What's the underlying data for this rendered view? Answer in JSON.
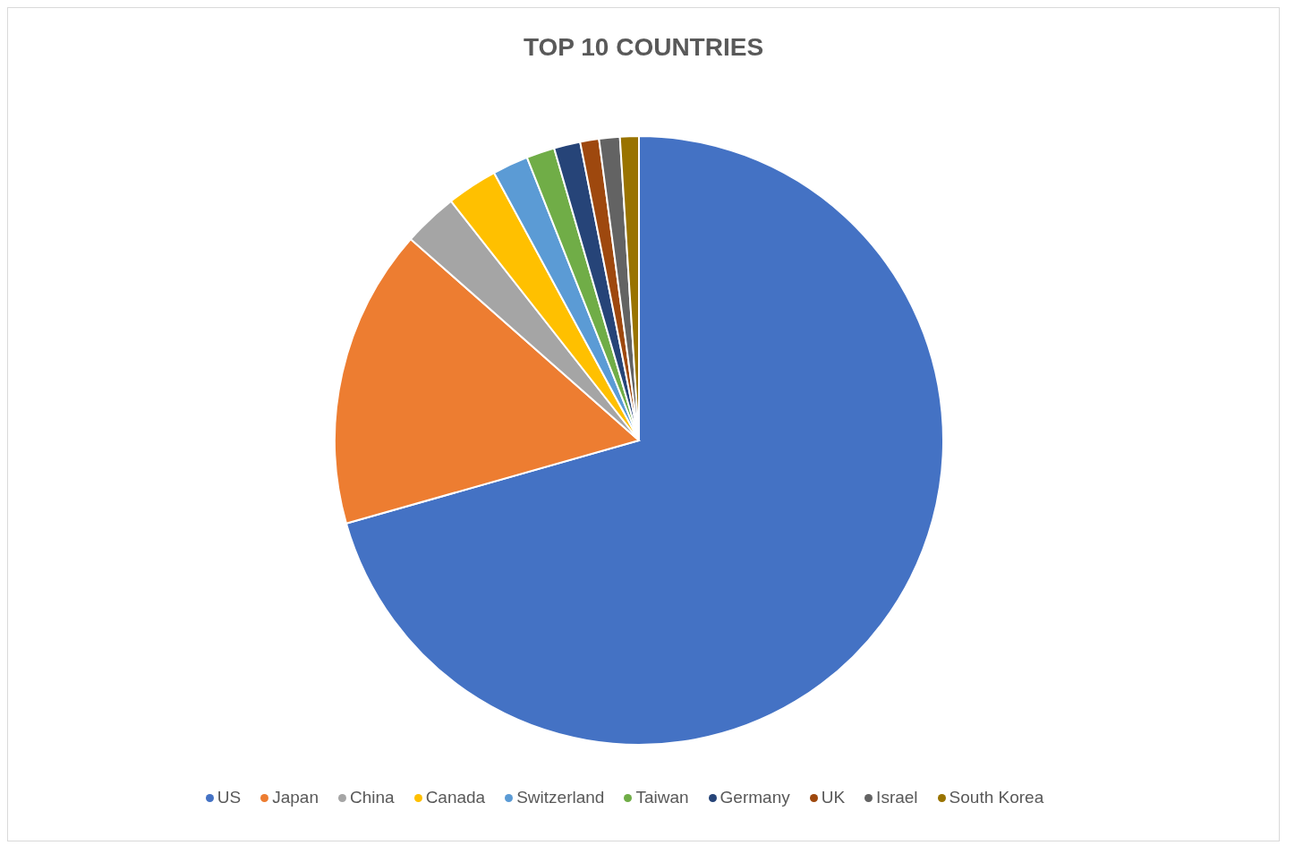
{
  "chart_data": {
    "type": "pie",
    "title": "TOP 10 COUNTRIES",
    "categories": [
      "US",
      "Japan",
      "China",
      "Canada",
      "Switzerland",
      "Taiwan",
      "Germany",
      "UK",
      "Israel",
      "South Korea"
    ],
    "values": [
      70.6,
      15.9,
      2.9,
      2.7,
      1.9,
      1.5,
      1.4,
      1.0,
      1.1,
      1.0
    ],
    "colors": [
      "#4472c4",
      "#ed7d31",
      "#a5a5a5",
      "#ffc000",
      "#5b9bd5",
      "#70ad47",
      "#264478",
      "#9e480e",
      "#636363",
      "#997300"
    ],
    "legend": "bottom"
  }
}
